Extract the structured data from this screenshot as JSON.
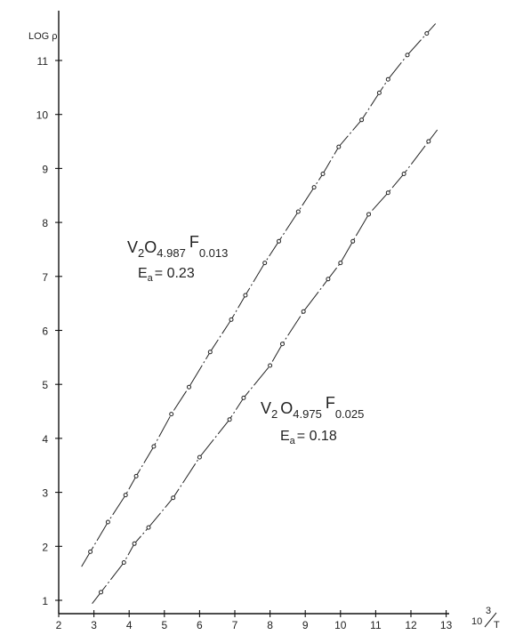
{
  "chart_data": {
    "type": "line",
    "xlabel": {
      "num": "10",
      "sup": "3",
      "den": "T"
    },
    "ylabel": "LOG ρ",
    "xlim": [
      2,
      13
    ],
    "ylim": [
      1,
      11.5
    ],
    "x_ticks": [
      2,
      3,
      4,
      5,
      6,
      7,
      8,
      9,
      10,
      11,
      12,
      13
    ],
    "y_ticks": [
      1,
      2,
      3,
      4,
      5,
      6,
      7,
      8,
      9,
      10,
      11
    ],
    "grid": false,
    "series": [
      {
        "annotation": {
          "base": "V",
          "subs": [
            "2",
            "4.987"
          ],
          "o": "O",
          "f": "F",
          "fsub": "0.013",
          "ea_label": "E",
          "ea_sub": "a",
          "ea_value": "= 0.23"
        },
        "x": [
          2.9,
          3.4,
          3.9,
          4.2,
          4.7,
          5.2,
          5.7,
          6.3,
          6.9,
          7.3,
          7.85,
          8.25,
          8.8,
          9.25,
          9.5,
          9.95,
          10.6,
          11.1,
          11.35,
          11.9,
          12.45
        ],
        "y": [
          1.9,
          2.45,
          2.95,
          3.3,
          3.85,
          4.45,
          4.95,
          5.6,
          6.2,
          6.65,
          7.25,
          7.65,
          8.2,
          8.65,
          8.9,
          9.4,
          9.9,
          10.4,
          10.65,
          11.1,
          11.5
        ]
      },
      {
        "annotation": {
          "base": "V",
          "subs": [
            "2",
            "4.975"
          ],
          "o": "O",
          "f": "F",
          "fsub": "0.025",
          "ea_label": "E",
          "ea_sub": "a",
          "ea_value": "= 0.18"
        },
        "x": [
          3.2,
          3.85,
          4.15,
          4.55,
          5.25,
          6.0,
          6.85,
          7.25,
          8.0,
          8.35,
          8.95,
          9.65,
          10.0,
          10.35,
          10.8,
          11.35,
          11.8,
          12.5
        ],
        "y": [
          1.15,
          1.7,
          2.05,
          2.35,
          2.9,
          3.65,
          4.35,
          4.75,
          5.35,
          5.75,
          6.35,
          6.95,
          7.25,
          7.65,
          8.15,
          8.55,
          8.9,
          9.5
        ]
      }
    ]
  }
}
